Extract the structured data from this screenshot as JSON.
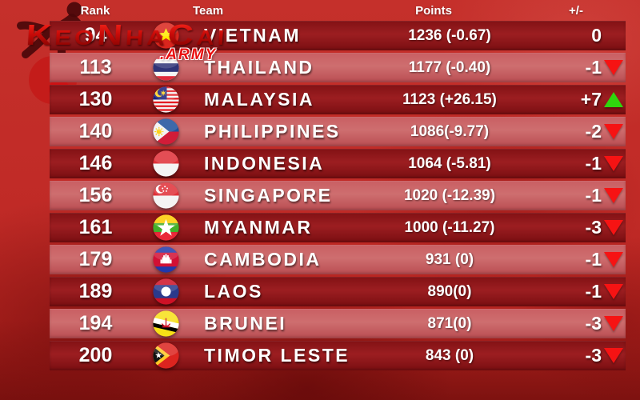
{
  "watermark": {
    "brand": "KeoNhaCai",
    "suffix": ".ARMY"
  },
  "header": {
    "rank": "Rank",
    "team": "Team",
    "points": "Points",
    "change": "+/-"
  },
  "colors": {
    "trend_up": "#2fd60d",
    "trend_down": "#f61313",
    "row_dark": "#8a1417",
    "row_light": "#c86164",
    "background": "#c02a26"
  },
  "table": {
    "rows": [
      {
        "rank": "94",
        "team": "VIETNAM",
        "flag": "vietnam-flag-icon",
        "points": "1236 (-0.67)",
        "change": "0",
        "trend": "none"
      },
      {
        "rank": "113",
        "team": "THAILAND",
        "flag": "thailand-flag-icon",
        "points": "1177 (-0.40)",
        "change": "-1",
        "trend": "down"
      },
      {
        "rank": "130",
        "team": "MALAYSIA",
        "flag": "malaysia-flag-icon",
        "points": "1123 (+26.15)",
        "change": "+7",
        "trend": "up"
      },
      {
        "rank": "140",
        "team": "PHILIPPINES",
        "flag": "philippines-flag-icon",
        "points": "1086(-9.77)",
        "change": "-2",
        "trend": "down"
      },
      {
        "rank": "146",
        "team": "INDONESIA",
        "flag": "indonesia-flag-icon",
        "points": "1064 (-5.81)",
        "change": "-1",
        "trend": "down"
      },
      {
        "rank": "156",
        "team": "SINGAPORE",
        "flag": "singapore-flag-icon",
        "points": "1020 (-12.39)",
        "change": "-1",
        "trend": "down"
      },
      {
        "rank": "161",
        "team": "MYANMAR",
        "flag": "myanmar-flag-icon",
        "points": "1000 (-11.27)",
        "change": "-3",
        "trend": "down"
      },
      {
        "rank": "179",
        "team": "CAMBODIA",
        "flag": "cambodia-flag-icon",
        "points": "931 (0)",
        "change": "-1",
        "trend": "down"
      },
      {
        "rank": "189",
        "team": "LAOS",
        "flag": "laos-flag-icon",
        "points": "890(0)",
        "change": "-1",
        "trend": "down"
      },
      {
        "rank": "194",
        "team": "BRUNEI",
        "flag": "brunei-flag-icon",
        "points": "871(0)",
        "change": "-3",
        "trend": "down"
      },
      {
        "rank": "200",
        "team": "TIMOR LESTE",
        "flag": "timor-leste-flag-icon",
        "points": "843 (0)",
        "change": "-3",
        "trend": "down"
      }
    ]
  },
  "chart_data": {
    "type": "table",
    "columns": [
      "Rank",
      "Team",
      "Points",
      "+/-"
    ],
    "rows": [
      [
        "94",
        "VIETNAM",
        "1236 (-0.67)",
        "0"
      ],
      [
        "113",
        "THAILAND",
        "1177 (-0.40)",
        "-1"
      ],
      [
        "130",
        "MALAYSIA",
        "1123 (+26.15)",
        "+7"
      ],
      [
        "140",
        "PHILIPPINES",
        "1086(-9.77)",
        "-2"
      ],
      [
        "146",
        "INDONESIA",
        "1064 (-5.81)",
        "-1"
      ],
      [
        "156",
        "SINGAPORE",
        "1020 (-12.39)",
        "-1"
      ],
      [
        "161",
        "MYANMAR",
        "1000 (-11.27)",
        "-3"
      ],
      [
        "179",
        "CAMBODIA",
        "931 (0)",
        "-1"
      ],
      [
        "189",
        "LAOS",
        "890(0)",
        "-1"
      ],
      [
        "194",
        "BRUNEI",
        "871(0)",
        "-3"
      ],
      [
        "200",
        "TIMOR LESTE",
        "843 (0)",
        "-3"
      ]
    ]
  }
}
